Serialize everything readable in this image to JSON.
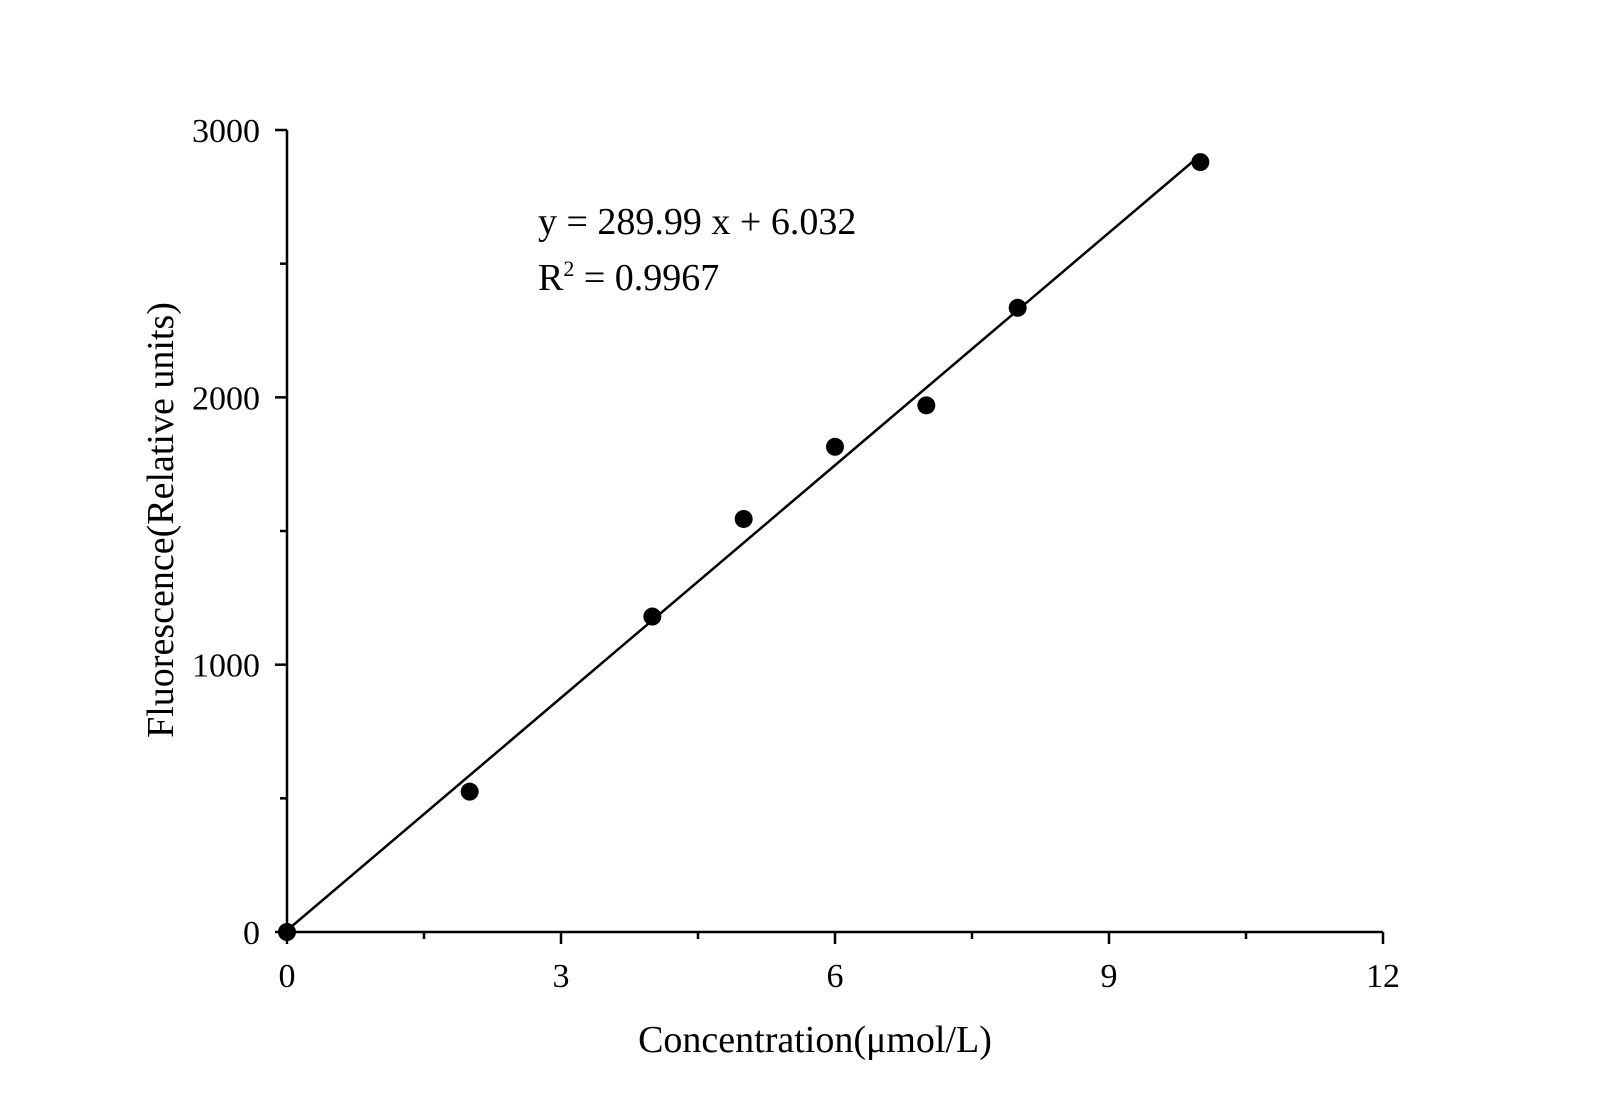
{
  "chart_data": {
    "type": "scatter",
    "title": "",
    "xlabel": "Concentration(μmol/L)",
    "ylabel": "Fluorescence(Relative units)",
    "xlim": [
      0,
      12
    ],
    "ylim": [
      0,
      3000
    ],
    "x_ticks": [
      0,
      3,
      6,
      9,
      12
    ],
    "x_tick_labels": [
      "0",
      "3",
      "6",
      "9",
      "12"
    ],
    "y_ticks": [
      0,
      1000,
      2000,
      3000
    ],
    "y_tick_labels": [
      "0",
      "1000",
      "2000",
      "3000"
    ],
    "grid": false,
    "legend": false,
    "series": [
      {
        "x": [
          0,
          2,
          4,
          5,
          6,
          7,
          8,
          10
        ],
        "y": [
          0,
          525,
          1180,
          1545,
          1815,
          1970,
          2335,
          2880
        ]
      }
    ],
    "fit": {
      "type": "linear",
      "slope": 289.99,
      "intercept": 6.032,
      "x_range": [
        0,
        10
      ]
    },
    "annotations": {
      "equation": "y = 289.99 x + 6.032",
      "r_label": "R",
      "r_superscript": "2",
      "r_value": " = 0.9967"
    },
    "colors": {
      "points": "#000000",
      "line": "#000000"
    }
  }
}
